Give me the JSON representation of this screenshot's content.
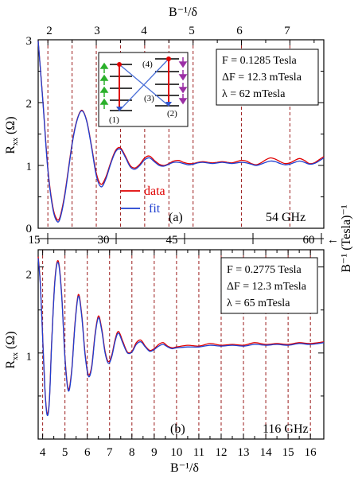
{
  "chart_data": [
    {
      "type": "line",
      "panel_label": "(a)",
      "frequency_label": "54 GHz",
      "ylabel": "R_xx (Ω)",
      "ylabel_main": "R",
      "ylabel_sub": "xx",
      "ylabel_unit": "(Ω)",
      "ylim": [
        0,
        3
      ],
      "y_ticks": [
        "0",
        "1",
        "2",
        "3"
      ],
      "top_axis_label": "B⁻¹/δ",
      "top_axis_ticks": [
        "2",
        "3",
        "4",
        "5",
        "6",
        "7"
      ],
      "bottom_axis_ticks": [
        "15",
        "30",
        "45",
        "60"
      ],
      "right_axis_label": "B⁻¹ (Tesla)⁻¹",
      "info_box": [
        "F = 0.1285 Tesla",
        "ΔF = 12.3 mTesla",
        "λ = 62 mTesla"
      ],
      "legend": [
        {
          "name": "data",
          "color": "#e00000"
        },
        {
          "name": "fit",
          "color": "#1f3fd0"
        }
      ],
      "vlines_x": [
        2.0,
        2.5,
        3.0,
        3.5,
        4.0,
        4.5,
        5.0,
        6.0,
        7.0
      ],
      "inset_labels": [
        "(1)",
        "(2)",
        "(3)",
        "(4)"
      ],
      "x_range": [
        1.8,
        7.7
      ],
      "series": [
        {
          "name": "data",
          "color": "#e00000",
          "x": [
            1.8,
            1.9,
            2.0,
            2.1,
            2.18,
            2.25,
            2.35,
            2.5,
            2.6,
            2.7,
            2.8,
            2.9,
            3.0,
            3.1,
            3.2,
            3.3,
            3.4,
            3.5,
            3.6,
            3.7,
            3.8,
            3.9,
            4.0,
            4.1,
            4.2,
            4.3,
            4.4,
            4.5,
            4.6,
            4.7,
            4.8,
            4.9,
            5.0,
            5.1,
            5.2,
            5.3,
            5.4,
            5.5,
            5.6,
            5.7,
            5.8,
            5.9,
            6.0,
            6.1,
            6.2,
            6.3,
            6.4,
            6.5,
            6.6,
            6.7,
            6.8,
            6.9,
            7.0,
            7.1,
            7.2,
            7.3,
            7.4,
            7.5,
            7.6,
            7.7
          ],
          "y": [
            2.98,
            2.0,
            0.95,
            0.35,
            0.15,
            0.18,
            0.55,
            1.35,
            1.72,
            1.88,
            1.72,
            1.32,
            0.88,
            0.7,
            0.82,
            1.05,
            1.24,
            1.28,
            1.15,
            1.0,
            0.96,
            1.02,
            1.12,
            1.15,
            1.08,
            1.02,
            1.0,
            1.03,
            1.07,
            1.08,
            1.05,
            1.03,
            1.03,
            1.05,
            1.06,
            1.05,
            1.04,
            1.05,
            1.06,
            1.05,
            1.04,
            1.06,
            1.08,
            1.07,
            1.03,
            1.01,
            1.04,
            1.09,
            1.12,
            1.1,
            1.06,
            1.03,
            1.04,
            1.08,
            1.11,
            1.08,
            1.03,
            1.04,
            1.09,
            1.14
          ]
        },
        {
          "name": "fit",
          "color": "#1f3fd0",
          "x": [
            1.8,
            1.9,
            2.0,
            2.1,
            2.18,
            2.25,
            2.35,
            2.5,
            2.6,
            2.7,
            2.8,
            2.9,
            3.0,
            3.1,
            3.2,
            3.3,
            3.4,
            3.5,
            3.6,
            3.7,
            3.8,
            3.9,
            4.0,
            4.1,
            4.2,
            4.3,
            4.4,
            4.5,
            4.6,
            4.7,
            4.8,
            4.9,
            5.0,
            5.1,
            5.2,
            5.3,
            5.4,
            5.5,
            5.6,
            5.7,
            5.8,
            5.9,
            6.0,
            6.1,
            6.2,
            6.3,
            6.4,
            6.5,
            6.6,
            6.7,
            6.8,
            6.9,
            7.0,
            7.1,
            7.2,
            7.3,
            7.4,
            7.5,
            7.6,
            7.7
          ],
          "y": [
            2.98,
            1.98,
            0.92,
            0.32,
            0.12,
            0.15,
            0.52,
            1.33,
            1.71,
            1.87,
            1.71,
            1.3,
            0.84,
            0.66,
            0.79,
            1.03,
            1.22,
            1.26,
            1.13,
            0.98,
            0.94,
            1.0,
            1.09,
            1.12,
            1.06,
            1.0,
            0.99,
            1.02,
            1.05,
            1.05,
            1.03,
            1.01,
            1.02,
            1.04,
            1.05,
            1.04,
            1.03,
            1.04,
            1.05,
            1.04,
            1.03,
            1.04,
            1.05,
            1.04,
            1.02,
            1.0,
            1.02,
            1.05,
            1.07,
            1.06,
            1.03,
            1.01,
            1.02,
            1.05,
            1.07,
            1.05,
            1.02,
            1.03,
            1.07,
            1.12
          ]
        }
      ]
    },
    {
      "type": "line",
      "panel_label": "(b)",
      "frequency_label": "116 GHz",
      "ylabel": "R_xx (Ω)",
      "ylabel_main": "R",
      "ylabel_sub": "xx",
      "ylabel_unit": "(Ω)",
      "ylim": [
        0,
        2.2
      ],
      "y_ticks": [
        "1",
        "2"
      ],
      "xlabel": "B⁻¹/δ",
      "x_ticks": [
        "4",
        "5",
        "6",
        "7",
        "8",
        "9",
        "10",
        "11",
        "12",
        "13",
        "14",
        "15",
        "16"
      ],
      "info_box": [
        "F = 0.2775 Tesla",
        "ΔF = 12.3 mTesla",
        "λ = 65 mTesla"
      ],
      "vlines_x": [
        4,
        5,
        6,
        7,
        8,
        9,
        10,
        11,
        12,
        13,
        14,
        15,
        16
      ],
      "x_range": [
        3.8,
        16.6
      ],
      "series": [
        {
          "name": "data",
          "color": "#e00000",
          "x": [
            3.8,
            3.9,
            4.0,
            4.1,
            4.2,
            4.3,
            4.4,
            4.55,
            4.7,
            4.85,
            5.0,
            5.15,
            5.3,
            5.45,
            5.6,
            5.75,
            5.9,
            6.05,
            6.2,
            6.35,
            6.5,
            6.65,
            6.8,
            6.95,
            7.1,
            7.25,
            7.4,
            7.6,
            7.8,
            8.0,
            8.2,
            8.4,
            8.6,
            8.8,
            9.0,
            9.2,
            9.4,
            9.6,
            9.8,
            10.0,
            10.5,
            11.0,
            11.5,
            12.0,
            12.5,
            13.0,
            13.5,
            14.0,
            14.5,
            15.0,
            15.5,
            16.0,
            16.6
          ],
          "y": [
            2.12,
            1.8,
            1.2,
            0.6,
            0.3,
            0.45,
            1.1,
            1.85,
            2.07,
            1.7,
            0.95,
            0.58,
            0.8,
            1.35,
            1.68,
            1.45,
            1.0,
            0.75,
            0.85,
            1.22,
            1.43,
            1.28,
            1.02,
            0.9,
            0.98,
            1.16,
            1.25,
            1.13,
            1.01,
            1.02,
            1.12,
            1.15,
            1.08,
            1.03,
            1.05,
            1.1,
            1.12,
            1.08,
            1.06,
            1.07,
            1.09,
            1.08,
            1.11,
            1.09,
            1.1,
            1.09,
            1.12,
            1.1,
            1.11,
            1.1,
            1.12,
            1.11,
            1.13
          ]
        },
        {
          "name": "fit",
          "color": "#1f3fd0",
          "x": [
            3.8,
            3.9,
            4.0,
            4.1,
            4.2,
            4.3,
            4.4,
            4.55,
            4.7,
            4.85,
            5.0,
            5.15,
            5.3,
            5.45,
            5.6,
            5.75,
            5.9,
            6.05,
            6.2,
            6.35,
            6.5,
            6.65,
            6.8,
            6.95,
            7.1,
            7.25,
            7.4,
            7.6,
            7.8,
            8.0,
            8.2,
            8.4,
            8.6,
            8.8,
            9.0,
            9.2,
            9.4,
            9.6,
            9.8,
            10.0,
            10.5,
            11.0,
            11.5,
            12.0,
            12.5,
            13.0,
            13.5,
            14.0,
            14.5,
            15.0,
            15.5,
            16.0,
            16.6
          ],
          "y": [
            2.1,
            1.78,
            1.18,
            0.58,
            0.28,
            0.43,
            1.08,
            1.83,
            2.05,
            1.68,
            0.93,
            0.56,
            0.78,
            1.33,
            1.66,
            1.43,
            0.98,
            0.73,
            0.83,
            1.2,
            1.41,
            1.26,
            1.0,
            0.88,
            0.96,
            1.14,
            1.23,
            1.11,
            1.0,
            1.01,
            1.1,
            1.13,
            1.07,
            1.02,
            1.04,
            1.08,
            1.1,
            1.07,
            1.05,
            1.06,
            1.07,
            1.07,
            1.09,
            1.08,
            1.09,
            1.08,
            1.1,
            1.09,
            1.1,
            1.09,
            1.11,
            1.1,
            1.12
          ]
        }
      ]
    }
  ]
}
